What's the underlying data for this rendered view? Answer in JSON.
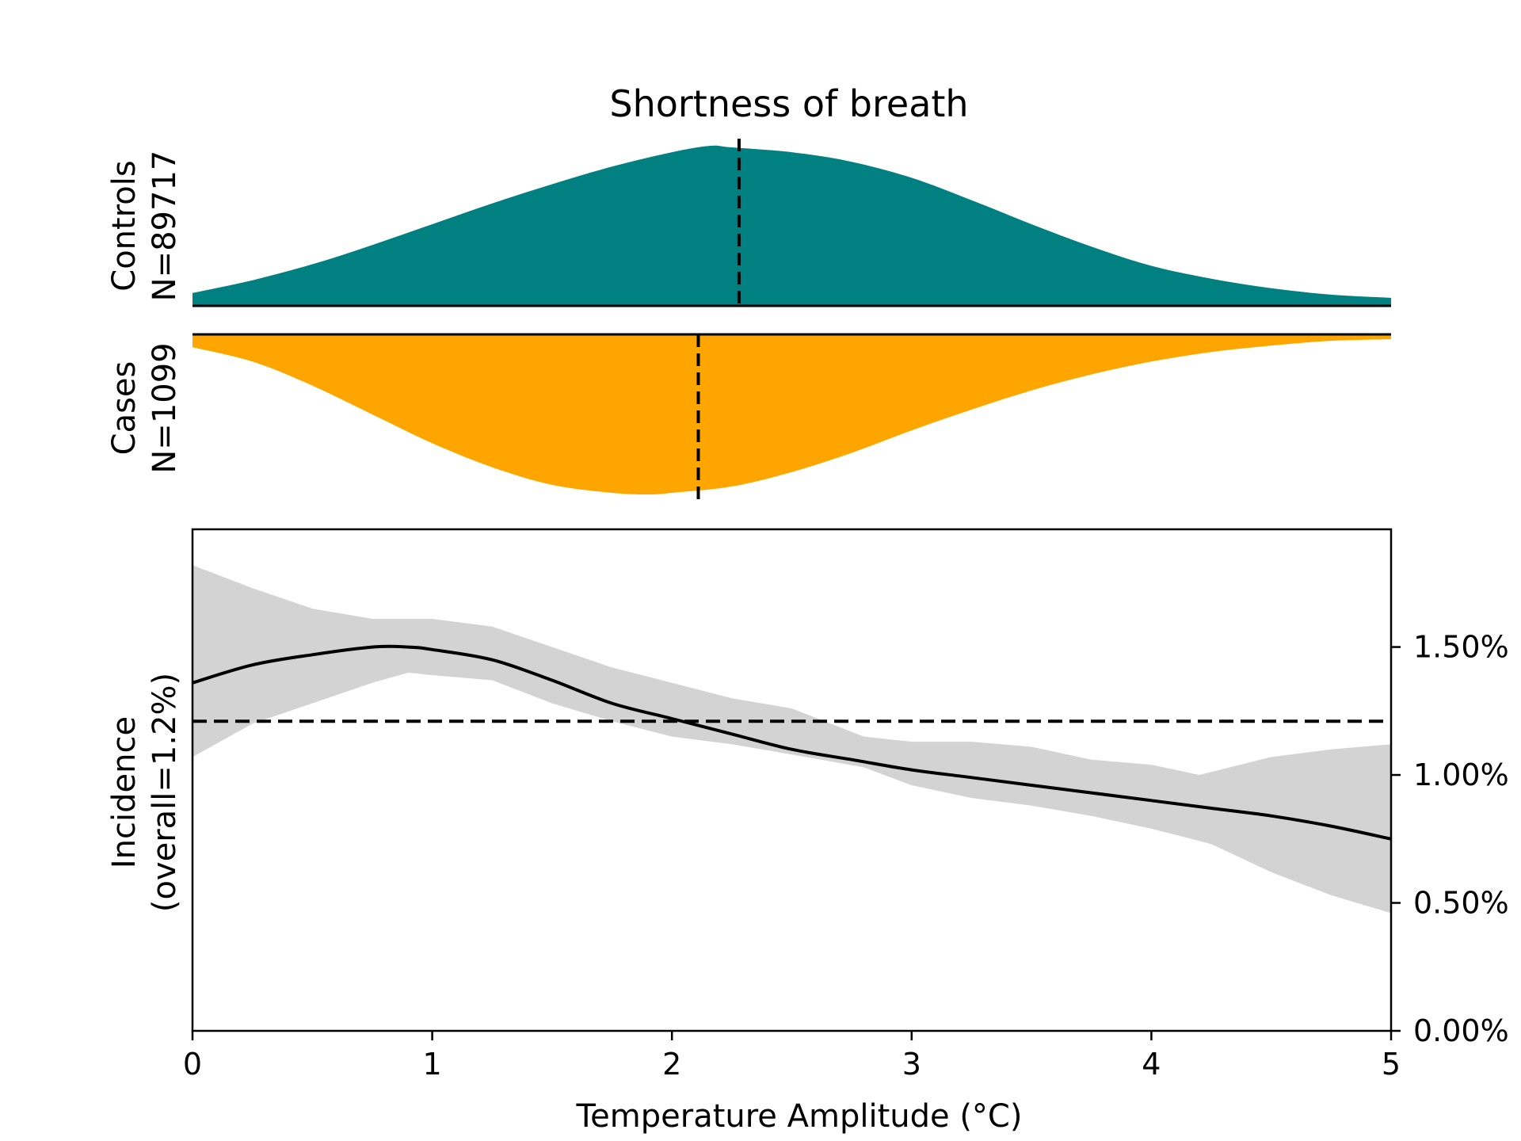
{
  "chart_data": {
    "type": "area",
    "title": "Shortness of breath",
    "colors": {
      "controls": "#008080",
      "cases": "#FFA500",
      "ci_band": "#D3D3D3",
      "line": "#000000"
    },
    "distributions": {
      "controls": {
        "label_line1": "Controls",
        "label_line2": "N=89717",
        "mean_line_x": 2.28,
        "density": {
          "x": [
            0,
            0.25,
            0.5,
            0.75,
            1.0,
            1.25,
            1.5,
            1.75,
            2.0,
            2.16,
            2.25,
            2.5,
            2.75,
            3.0,
            3.25,
            3.5,
            3.75,
            4.0,
            4.25,
            4.5,
            4.75,
            5.0
          ],
          "y": [
            0.08,
            0.16,
            0.26,
            0.38,
            0.51,
            0.64,
            0.76,
            0.87,
            0.96,
            1.0,
            0.99,
            0.96,
            0.9,
            0.8,
            0.66,
            0.51,
            0.37,
            0.25,
            0.17,
            0.11,
            0.07,
            0.05
          ]
        }
      },
      "cases": {
        "label_line1": "Cases",
        "label_line2": "N=1099",
        "mean_line_x": 2.11,
        "density": {
          "x": [
            0,
            0.25,
            0.5,
            0.75,
            1.0,
            1.25,
            1.5,
            1.75,
            1.9,
            2.0,
            2.25,
            2.5,
            2.75,
            3.0,
            3.25,
            3.5,
            3.75,
            4.0,
            4.25,
            4.5,
            4.75,
            5.0
          ],
          "y": [
            0.08,
            0.17,
            0.32,
            0.5,
            0.68,
            0.83,
            0.94,
            0.99,
            1.0,
            0.99,
            0.95,
            0.86,
            0.74,
            0.6,
            0.47,
            0.35,
            0.25,
            0.17,
            0.11,
            0.07,
            0.04,
            0.03
          ]
        }
      }
    },
    "incidence": {
      "ylabel_line1": "Incidence",
      "ylabel_line2": "(overall=1.2%)",
      "xlabel": "Temperature Amplitude (°C)",
      "overall_incidence": 1.21,
      "xlim": [
        0,
        5
      ],
      "ylim": [
        0,
        1.96
      ],
      "x_ticks": [
        0,
        1,
        2,
        3,
        4,
        5
      ],
      "x_tick_labels": [
        "0",
        "1",
        "2",
        "3",
        "4",
        "5"
      ],
      "y_ticks": [
        0,
        0.5,
        1.0,
        1.5
      ],
      "y_tick_labels": [
        "0.00%",
        "0.50%",
        "1.00%",
        "1.50%"
      ],
      "y_axis_side": "right",
      "estimate": {
        "x": [
          0,
          0.25,
          0.5,
          0.75,
          0.9,
          1.0,
          1.25,
          1.5,
          1.75,
          2.0,
          2.25,
          2.5,
          2.75,
          3.0,
          3.25,
          3.5,
          3.75,
          4.0,
          4.25,
          4.5,
          4.75,
          5.0
        ],
        "y": [
          1.36,
          1.43,
          1.47,
          1.5,
          1.5,
          1.49,
          1.45,
          1.37,
          1.28,
          1.22,
          1.16,
          1.1,
          1.06,
          1.02,
          0.99,
          0.96,
          0.93,
          0.9,
          0.87,
          0.84,
          0.8,
          0.75
        ]
      },
      "ci_upper": {
        "x": [
          0,
          0.25,
          0.5,
          0.75,
          1.0,
          1.25,
          1.5,
          1.75,
          2.0,
          2.25,
          2.5,
          2.8,
          3.0,
          3.25,
          3.5,
          3.75,
          4.0,
          4.2,
          4.5,
          4.75,
          5.0
        ],
        "y": [
          1.82,
          1.73,
          1.65,
          1.61,
          1.61,
          1.58,
          1.5,
          1.42,
          1.36,
          1.3,
          1.26,
          1.15,
          1.13,
          1.13,
          1.11,
          1.06,
          1.04,
          1.0,
          1.07,
          1.1,
          1.12
        ]
      },
      "ci_lower": {
        "x": [
          0,
          0.25,
          0.5,
          0.75,
          0.9,
          1.0,
          1.25,
          1.5,
          1.75,
          2.0,
          2.25,
          2.5,
          2.8,
          3.0,
          3.25,
          3.5,
          3.75,
          4.0,
          4.25,
          4.5,
          4.75,
          5.0
        ],
        "y": [
          1.07,
          1.2,
          1.28,
          1.36,
          1.4,
          1.39,
          1.37,
          1.28,
          1.21,
          1.15,
          1.12,
          1.08,
          1.03,
          0.96,
          0.91,
          0.88,
          0.84,
          0.79,
          0.73,
          0.62,
          0.53,
          0.46
        ]
      }
    }
  }
}
